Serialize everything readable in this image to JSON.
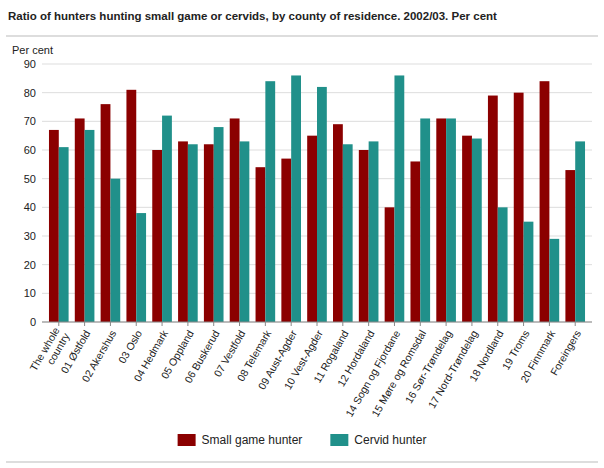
{
  "chart_data": {
    "type": "bar",
    "title": "Ratio of hunters hunting small game or cervids, by county of residence. 2002/03. Per cent",
    "ylabel": "Per cent",
    "categories": [
      "The whole\ncountry",
      "01 Østfold",
      "02 Akershus",
      "03 Oslo",
      "04 Hedmark",
      "05 Oppland",
      "06 Buskerud",
      "07 Vestfold",
      "08 Telemark",
      "09 Aust-Agder",
      "10 Vest-Agder",
      "11 Rogaland",
      "12 Hordaland",
      "14 Sogn og Fjordane",
      "15 Møre og Romsdal",
      "16 Sør-Trøndelag",
      "17 Nord-Trøndelag",
      "18 Nordland",
      "19 Troms",
      "20 Finnmark",
      "Foreingers"
    ],
    "series": [
      {
        "name": "Small game hunter",
        "color": "#8B0000",
        "values": [
          67,
          71,
          76,
          81,
          60,
          63,
          62,
          71,
          54,
          57,
          65,
          69,
          60,
          40,
          56,
          71,
          65,
          79,
          80,
          84,
          53
        ]
      },
      {
        "name": "Cervid hunter",
        "color": "#20908A",
        "values": [
          61,
          67,
          50,
          38,
          72,
          62,
          68,
          63,
          84,
          86,
          82,
          62,
          63,
          86,
          71,
          71,
          64,
          40,
          35,
          29,
          63
        ]
      }
    ],
    "ylim": [
      0,
      90
    ],
    "yticks": [
      0,
      10,
      20,
      30,
      40,
      50,
      60,
      70,
      80,
      90
    ],
    "grid": true,
    "legend": "bottom"
  }
}
